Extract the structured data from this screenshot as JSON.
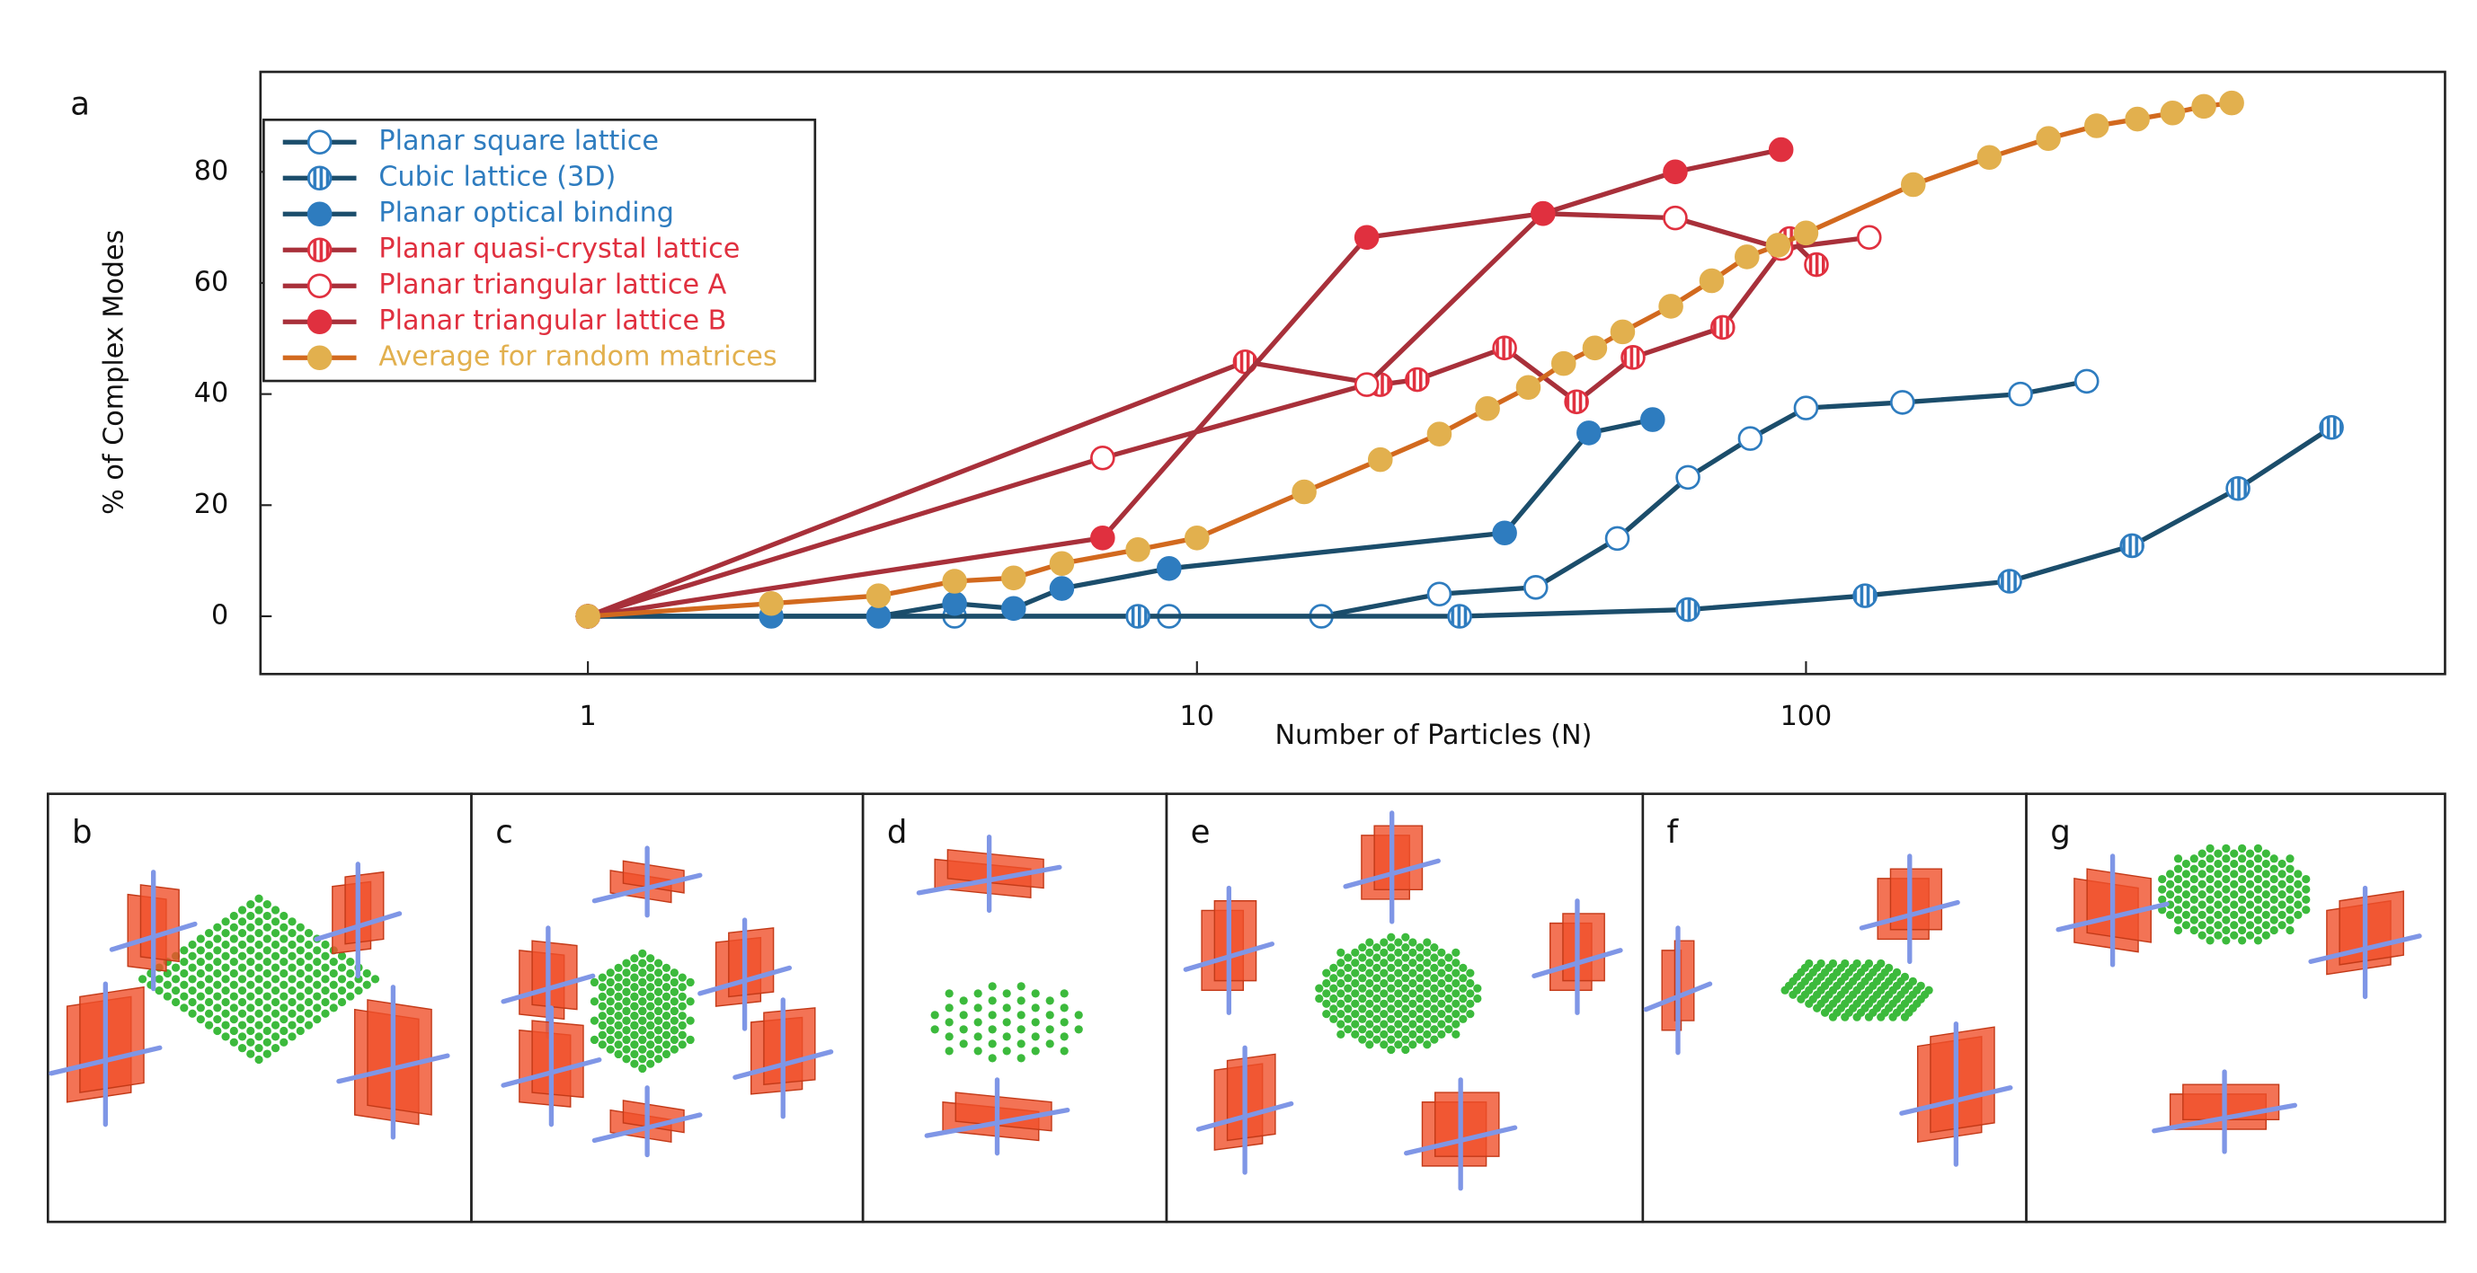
{
  "chart_data": {
    "type": "line",
    "panel_label": "a",
    "x_label": "Number of Particles (N)",
    "y_label": "% of Complex Modes",
    "log_x": true,
    "xlim": [
      0.29,
      1120
    ],
    "ylim": [
      -10.4,
      98
    ],
    "xticks": [
      1,
      10,
      100
    ],
    "yticks": [
      0,
      20,
      40,
      60,
      80
    ],
    "grid": false,
    "legend": "upper left",
    "series": [
      {
        "name": "Planar square lattice",
        "color": "#2e7cbf",
        "line_color": "#1b4d6b",
        "marker": "open",
        "x": [
          1,
          4,
          9,
          16,
          25,
          36,
          49,
          64,
          81,
          100,
          144,
          225,
          289
        ],
        "values": [
          0,
          0,
          0,
          0,
          4,
          5.2,
          14,
          25,
          32,
          37.5,
          38.5,
          40,
          42.3
        ]
      },
      {
        "name": "Cubic lattice (3D)",
        "color": "#2e7cbf",
        "line_color": "#1b4d6b",
        "marker": "striped",
        "x": [
          1,
          8,
          27,
          64,
          125,
          216,
          343,
          512,
          729
        ],
        "values": [
          0,
          0,
          0,
          1.2,
          3.7,
          6.3,
          12.7,
          23,
          34
        ]
      },
      {
        "name": "Planar optical binding",
        "color": "#2e7cbf",
        "line_color": "#1b4d6b",
        "marker": "filled",
        "x": [
          1,
          2,
          3,
          4,
          5,
          6,
          9,
          32,
          44,
          56
        ],
        "values": [
          0,
          0,
          0,
          2.3,
          1.4,
          5,
          8.6,
          15,
          33,
          35.4
        ]
      },
      {
        "name": "Planar quasi-crystal lattice",
        "color": "#e0303f",
        "line_color": "#a8303a",
        "marker": "striped",
        "x": [
          1,
          12,
          20,
          23,
          32,
          42,
          52,
          73,
          94,
          104
        ],
        "values": [
          0,
          45.8,
          41.7,
          42.6,
          48.3,
          38.6,
          46.6,
          52,
          68,
          63.3
        ]
      },
      {
        "name": "Planar triangular lattice A",
        "color": "#e0303f",
        "line_color": "#a8303a",
        "marker": "open",
        "x": [
          1,
          7,
          19,
          37,
          61,
          91,
          127
        ],
        "values": [
          0,
          28.5,
          41.7,
          72.5,
          71.7,
          66.2,
          68.2
        ]
      },
      {
        "name": "Planar triangular lattice B",
        "color": "#e0303f",
        "line_color": "#a8303a",
        "marker": "filled",
        "x": [
          1,
          7,
          19,
          37,
          61,
          91
        ],
        "values": [
          0,
          14.1,
          68.2,
          72.5,
          80,
          84
        ]
      },
      {
        "name": "Average for random matrices",
        "color": "#e2b04e",
        "line_color": "#d2691e",
        "marker": "filled",
        "x": [
          1,
          2,
          3,
          4,
          5,
          6,
          8,
          10,
          15,
          20,
          25,
          30,
          35,
          40,
          45,
          50,
          60,
          70,
          80,
          90,
          100,
          150,
          200,
          250,
          300,
          350,
          400,
          450,
          500
        ],
        "values": [
          0,
          2.3,
          3.7,
          6.3,
          6.9,
          9.5,
          12,
          14.1,
          22.4,
          28.2,
          32.8,
          37.4,
          41.2,
          45.5,
          48.3,
          51.2,
          55.8,
          60.4,
          64.7,
          66.8,
          69,
          77.7,
          82.6,
          86,
          88.3,
          89.5,
          90.6,
          91.8,
          92.4
        ]
      }
    ]
  },
  "panels": [
    "b",
    "c",
    "d",
    "e",
    "f",
    "g"
  ]
}
